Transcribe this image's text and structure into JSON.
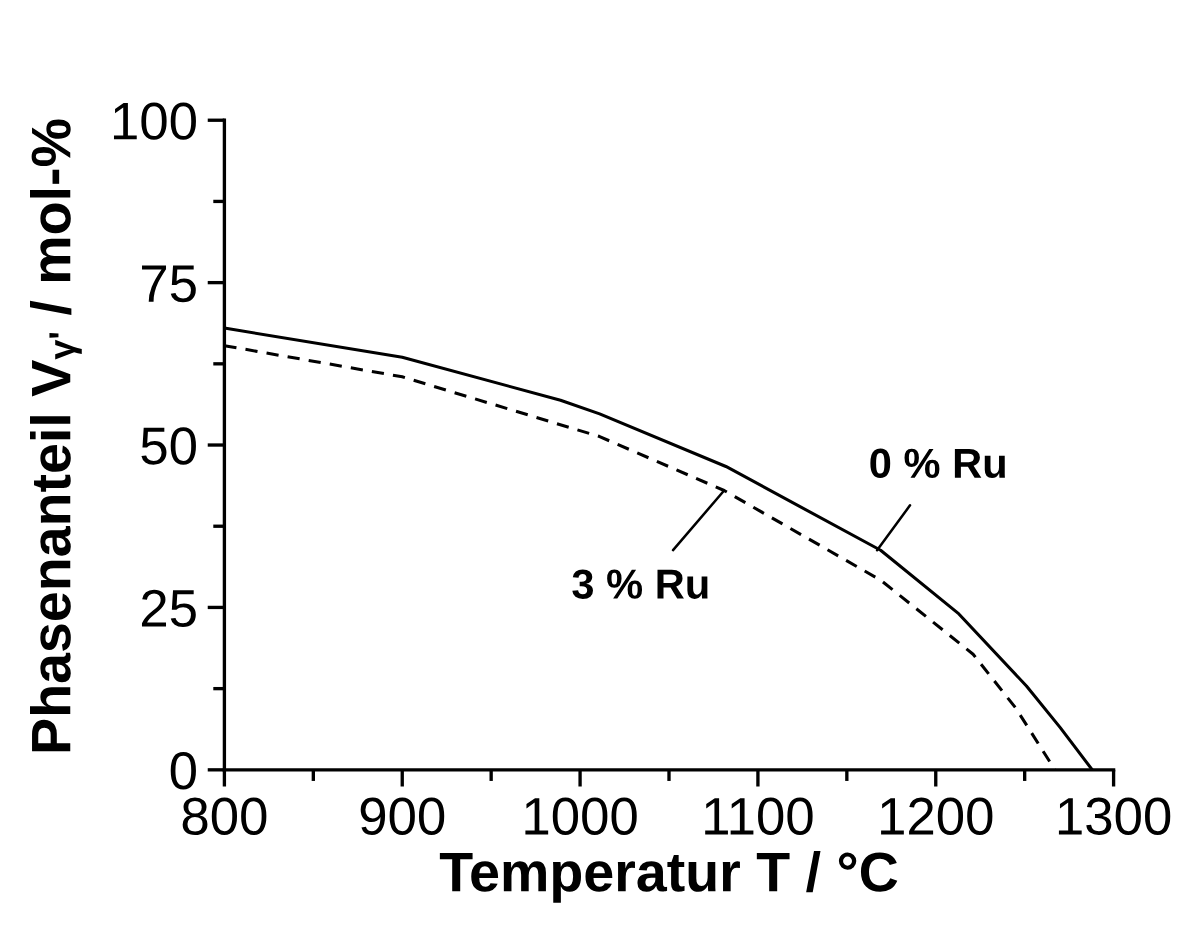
{
  "chart_data": {
    "type": "line",
    "xlabel": "Temperatur T / °C",
    "ylabel": "Phasenanteil V$_{γ'}$ / mol-%",
    "series": [
      {
        "x": [
          800,
          900,
          989,
          1011,
          1082,
          1169,
          1213,
          1251,
          1270,
          1288
        ],
        "values": [
          68,
          63.5,
          56.9,
          54.8,
          46.7,
          33.8,
          24,
          12.9,
          6.5,
          0
        ],
        "color": "#000000",
        "line_style": "solid"
      },
      {
        "x": [
          800,
          900,
          1011,
          1081,
          1169,
          1221,
          1245,
          1267
        ],
        "values": [
          65.3,
          60.5,
          51.3,
          43,
          29.2,
          17.8,
          9.5,
          0
        ],
        "color": "#000000",
        "line_style": "dashed"
      }
    ],
    "xlim": [
      800,
      1300
    ],
    "xticks": [
      800,
      900,
      1000,
      1100,
      1200,
      1300
    ],
    "ylim": [
      0,
      100
    ],
    "yticks": [
      0,
      25,
      50,
      75,
      100
    ],
    "grid": false,
    "legend": false,
    "annotations": [
      {
        "text": "0 % Ru",
        "x": 1167,
        "y": 33.8
      },
      {
        "text": "3 % Ru",
        "x": 1081,
        "y": 43
      }
    ]
  }
}
